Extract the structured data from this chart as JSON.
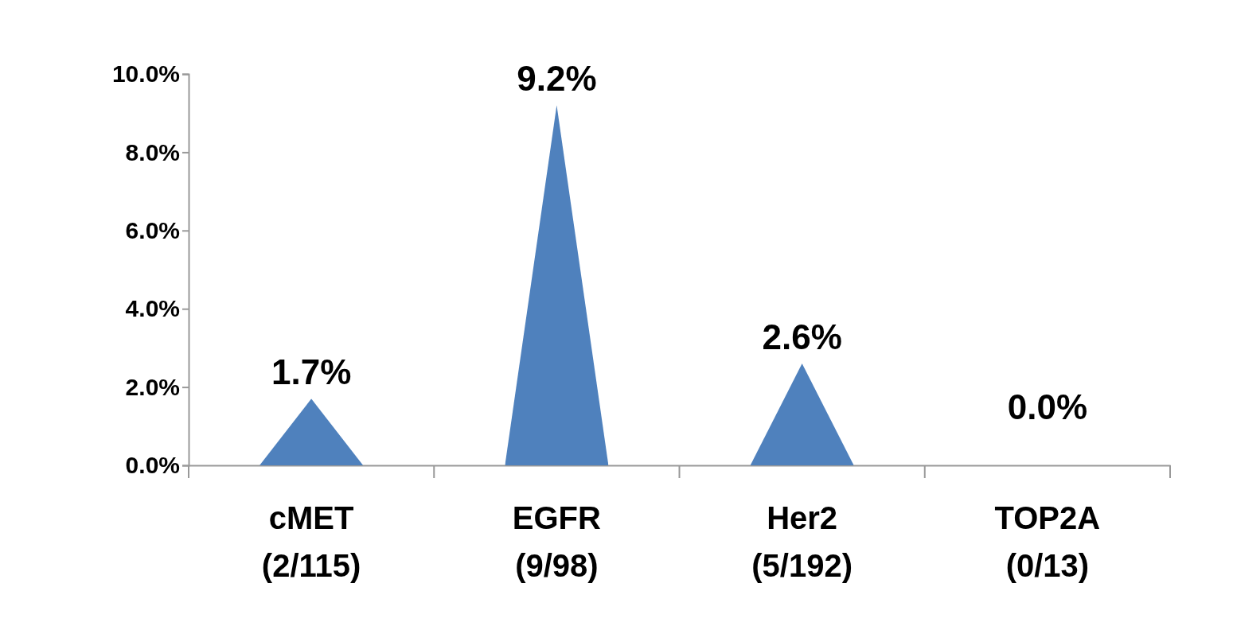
{
  "chart_data": {
    "type": "bar",
    "categories": [
      "cMET (2/115)",
      "EGFR (9/98)",
      "Her2 (5/192)",
      "TOP2A (0/13)"
    ],
    "values": [
      1.7,
      9.2,
      2.6,
      0.0
    ],
    "value_labels": [
      "1.7%",
      "9.2%",
      "2.6%",
      "0.0%"
    ],
    "color": "#4f81bd",
    "ylim": [
      0,
      10
    ],
    "yticks": [
      {
        "value": 0,
        "label": "0.0%"
      },
      {
        "value": 2,
        "label": "2.0%"
      },
      {
        "value": 4,
        "label": "4.0%"
      },
      {
        "value": 6,
        "label": "6.0%"
      },
      {
        "value": 8,
        "label": "8.0%"
      },
      {
        "value": 10,
        "label": "10.0%"
      }
    ],
    "grid": false
  }
}
